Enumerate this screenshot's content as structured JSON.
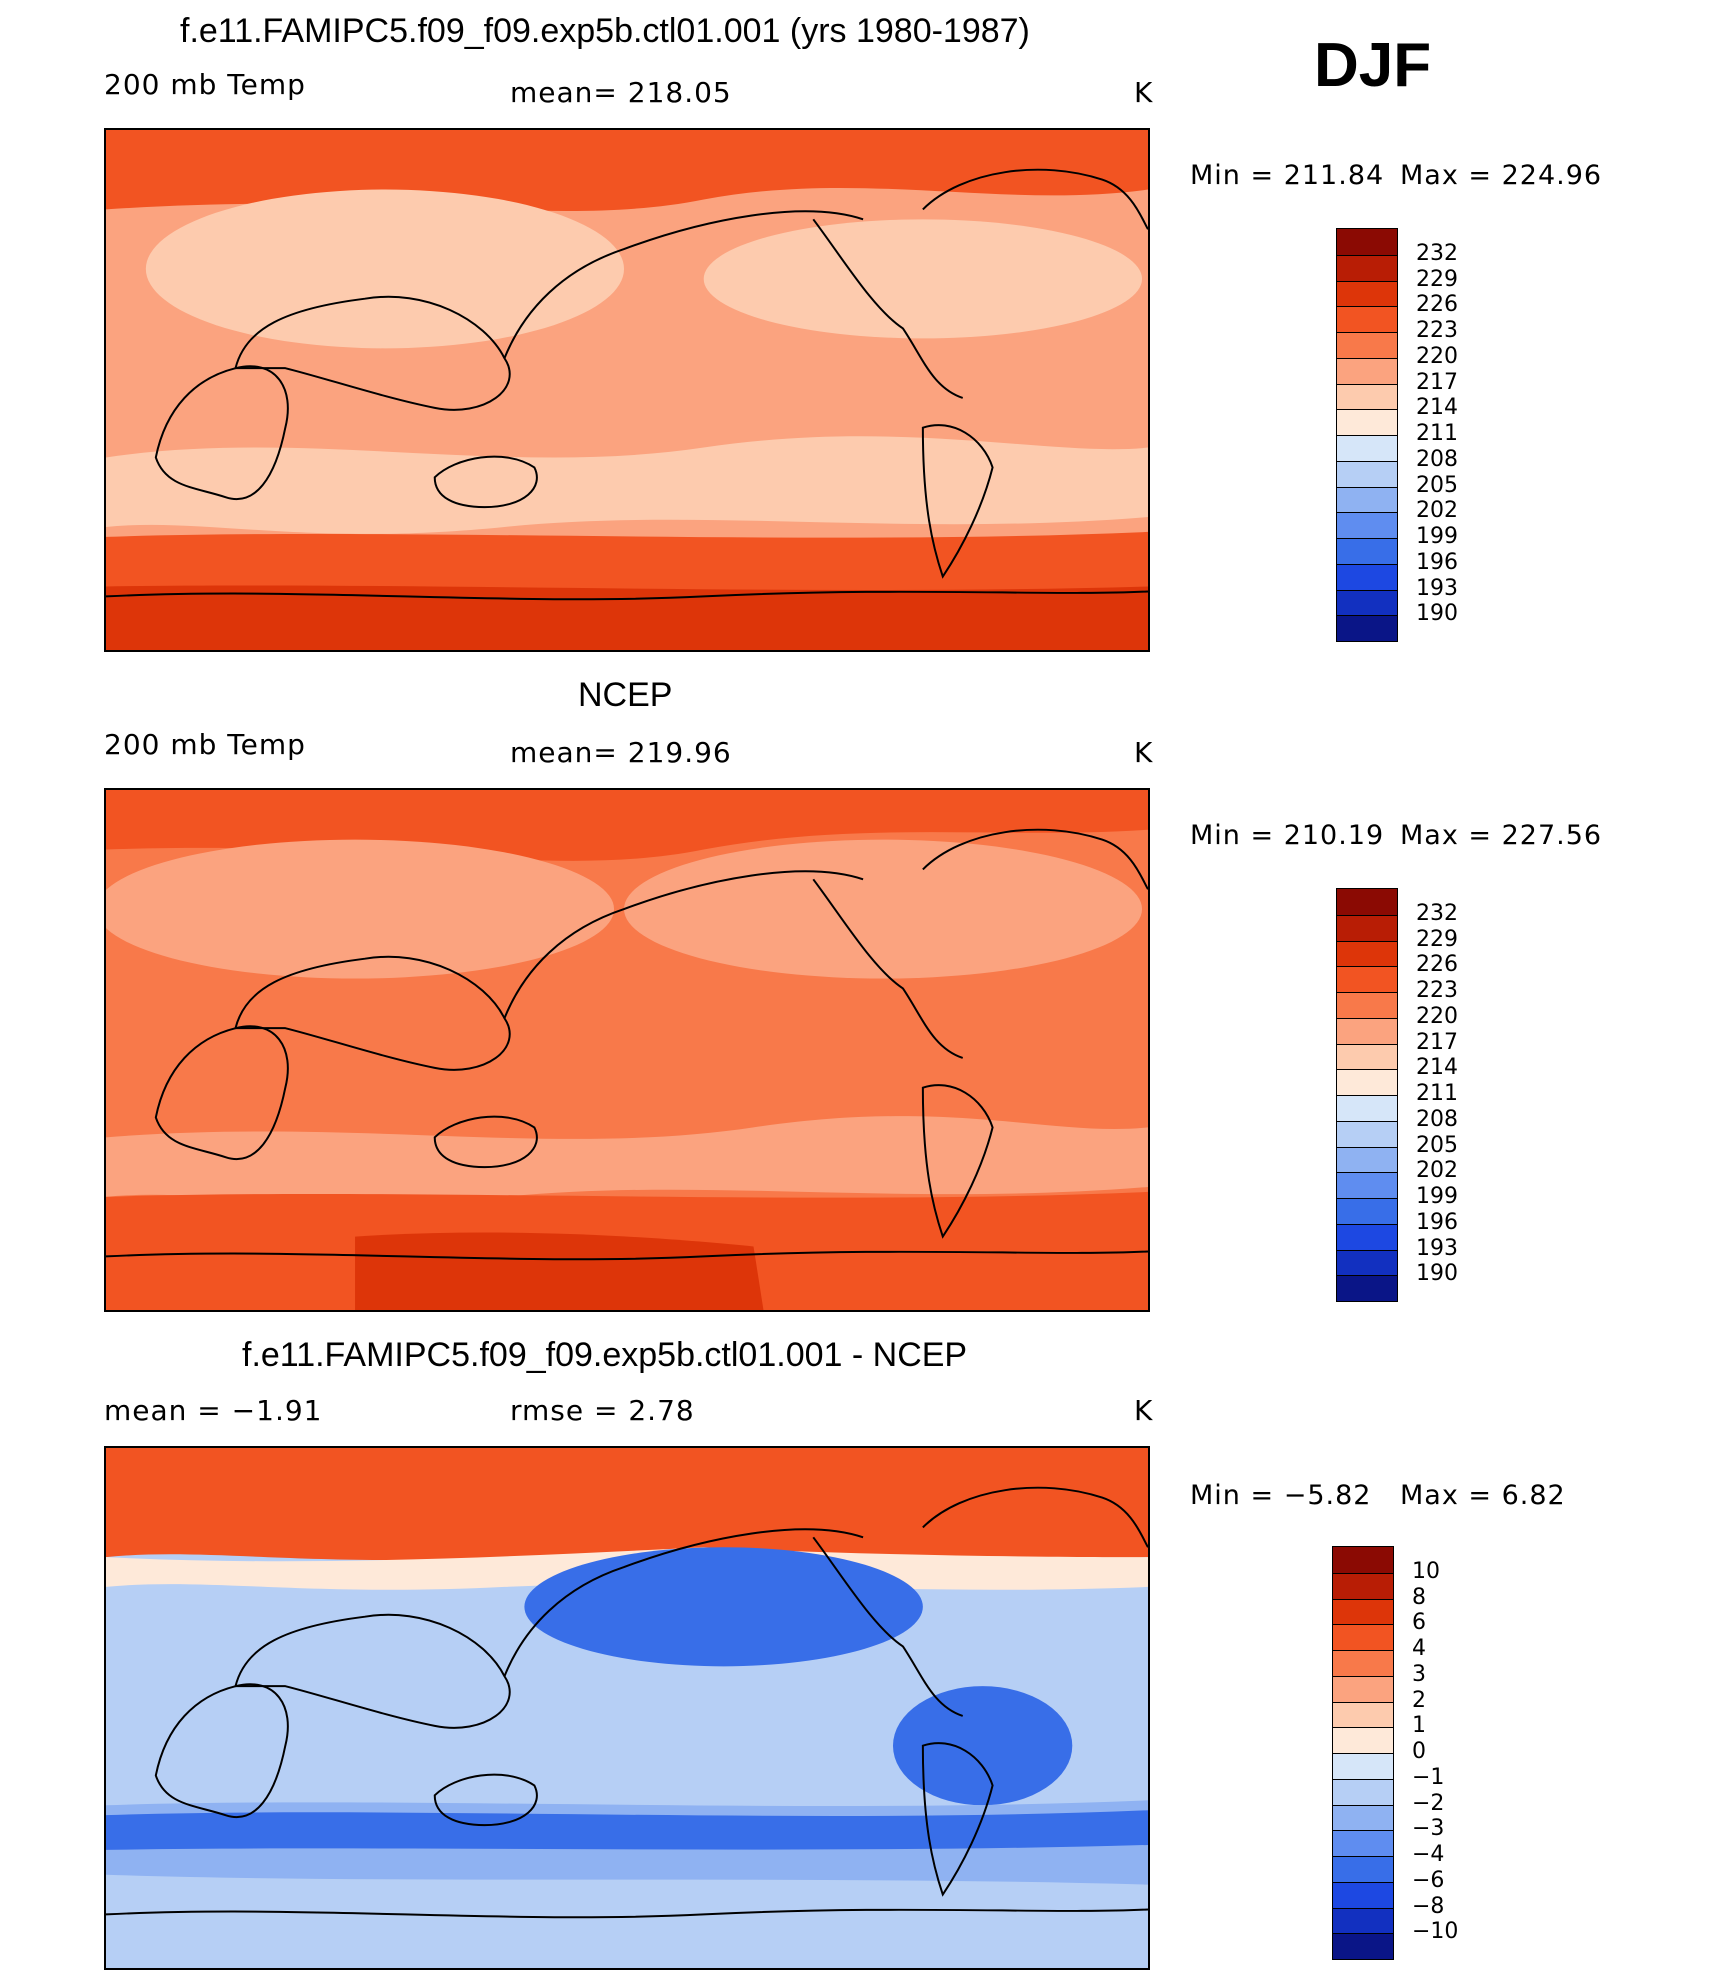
{
  "season": "DJF",
  "panels": [
    {
      "title": "f.e11.FAMIPC5.f09_f09.exp5b.ctl01.001 (yrs 1980-1987)",
      "left_label": "200 mb Temp",
      "center_label": "mean=  218.05",
      "units": "K",
      "min_label": "Min  =  211.84",
      "max_label": "Max  =  224.96",
      "colorbar": {
        "labels": [
          "232",
          "229",
          "226",
          "223",
          "220",
          "217",
          "214",
          "211",
          "208",
          "205",
          "202",
          "199",
          "196",
          "193",
          "190"
        ],
        "colors": [
          "#8b0a03",
          "#b81d05",
          "#dd3509",
          "#f25422",
          "#f8794a",
          "#fba37f",
          "#fdcbae",
          "#fee9d9",
          "#d6e6f9",
          "#b6cff5",
          "#8fb2f2",
          "#5f8df0",
          "#386ee8",
          "#1d48e2",
          "#1230c0",
          "#0a1587"
        ]
      },
      "field": {
        "base": "#fba37f",
        "polar": "#f25422",
        "deep": "#dd3509",
        "mid": "#fdcbae",
        "pale": "#fee9d9"
      }
    },
    {
      "title": "NCEP",
      "left_label": "200 mb Temp",
      "center_label": "mean=  219.96",
      "units": "K",
      "min_label": "Min  =  210.19",
      "max_label": "Max  =  227.56",
      "colorbar": {
        "labels": [
          "232",
          "229",
          "226",
          "223",
          "220",
          "217",
          "214",
          "211",
          "208",
          "205",
          "202",
          "199",
          "196",
          "193",
          "190"
        ],
        "colors": [
          "#8b0a03",
          "#b81d05",
          "#dd3509",
          "#f25422",
          "#f8794a",
          "#fba37f",
          "#fdcbae",
          "#fee9d9",
          "#d6e6f9",
          "#b6cff5",
          "#8fb2f2",
          "#5f8df0",
          "#386ee8",
          "#1d48e2",
          "#1230c0",
          "#0a1587"
        ]
      },
      "field": {
        "base": "#f8794a",
        "polar": "#f25422",
        "deep": "#dd3509",
        "mid": "#fba37f",
        "pale": "#fee9d9"
      }
    },
    {
      "title": "f.e11.FAMIPC5.f09_f09.exp5b.ctl01.001 - NCEP",
      "left_label": "mean =    −1.91",
      "center_label": "rmse =     2.78",
      "units": "K",
      "min_label": "Min  =    −5.82",
      "max_label": "Max  =      6.82",
      "colorbar": {
        "labels": [
          "10",
          "8",
          "6",
          "4",
          "3",
          "2",
          "1",
          "0",
          "−1",
          "−2",
          "−3",
          "−4",
          "−6",
          "−8",
          "−10"
        ],
        "colors": [
          "#8b0a03",
          "#b81d05",
          "#dd3509",
          "#f25422",
          "#f8794a",
          "#fba37f",
          "#fdcbae",
          "#fee9d9",
          "#d6e6f9",
          "#b6cff5",
          "#8fb2f2",
          "#5f8df0",
          "#386ee8",
          "#1d48e2",
          "#1230c0",
          "#0a1587"
        ]
      },
      "field": {
        "base": "#b6cff5",
        "polar": "#f25422",
        "deep": "#386ee8",
        "mid": "#8fb2f2",
        "pale": "#fee9d9"
      }
    }
  ]
}
